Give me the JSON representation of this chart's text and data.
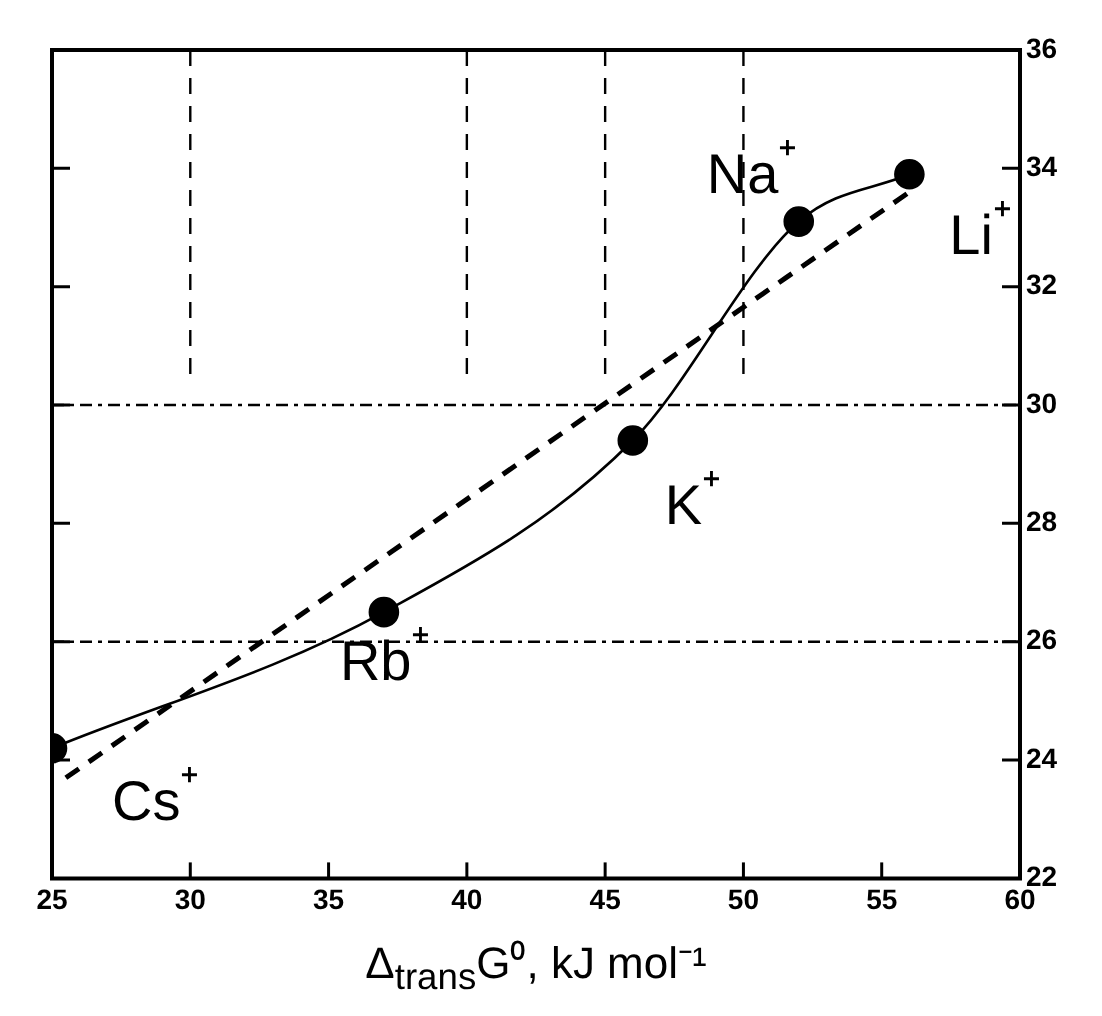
{
  "chart_data": {
    "type": "line",
    "xlabel": "Δ$_{trans}$G⁰, kJ mol⁻¹",
    "xlim": [
      25,
      60
    ],
    "xticks": [
      25,
      30,
      35,
      40,
      45,
      50,
      55,
      60
    ],
    "ylim": [
      22,
      36
    ],
    "yticks": [
      22,
      24,
      26,
      28,
      30,
      32,
      34,
      36
    ],
    "grid": false,
    "legend": false,
    "series": [
      {
        "type": "line",
        "color": "#000000",
        "marker": "circle",
        "line_style": "solid",
        "x": [
          25,
          37,
          46,
          52,
          56
        ],
        "values": [
          24.2,
          26.5,
          29.4,
          33.1,
          33.9
        ]
      },
      {
        "type": "line",
        "color": "#000000",
        "marker": "none",
        "line_style": "dashed",
        "x": [
          25.5,
          56
        ],
        "values": [
          23.7,
          33.6
        ]
      }
    ],
    "ref_lines": [
      {
        "axis": "y",
        "value": 30,
        "line_style": "dotted",
        "color": "#000000"
      },
      {
        "axis": "y",
        "value": 26,
        "line_style": "dotted",
        "color": "#000000"
      },
      {
        "axis": "x",
        "value": 30,
        "line_style": "dashed",
        "color": "#000000"
      },
      {
        "axis": "x",
        "value": 40,
        "line_style": "dashed",
        "color": "#000000"
      },
      {
        "axis": "x",
        "value": 45,
        "line_style": "dashed",
        "color": "#000000"
      },
      {
        "axis": "x",
        "value": 50,
        "line_style": "dashed",
        "color": "#000000"
      }
    ],
    "annotations": [
      {
        "text": "Cs⁺",
        "x": 25,
        "y": 24.2
      },
      {
        "text": "Rb⁺",
        "x": 37,
        "y": 26.5
      },
      {
        "text": "K⁺",
        "x": 46,
        "y": 29.4
      },
      {
        "text": "Na⁺",
        "x": 52,
        "y": 33.1
      },
      {
        "text": "Li⁺",
        "x": 56,
        "y": 33.9
      }
    ]
  }
}
